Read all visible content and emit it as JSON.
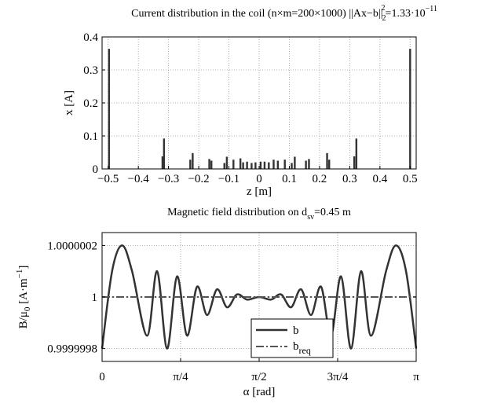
{
  "chart_data": [
    {
      "type": "bar",
      "title": "Current distribution in the coil (n×m=200×1000) ||Ax−b||",
      "title_sub": "2",
      "title_sup": "2",
      "title_tail": "=1.33·10",
      "title_exp": "−11",
      "xlabel": "z [m]",
      "ylabel": "x [A]",
      "xlim": [
        -0.52,
        0.52
      ],
      "ylim": [
        0,
        0.4
      ],
      "xticks": [
        -0.5,
        -0.4,
        -0.3,
        -0.2,
        -0.1,
        0,
        0.1,
        0.2,
        0.3,
        0.4,
        0.5
      ],
      "xtick_labels": [
        "−0.5",
        "−0.4",
        "−0.3",
        "−0.2",
        "−0.1",
        "0",
        "0.1",
        "0.2",
        "0.3",
        "0.4",
        "0.5"
      ],
      "yticks": [
        0,
        0.1,
        0.2,
        0.3,
        0.4
      ],
      "ytick_labels": [
        "0",
        "0.1",
        "0.2",
        "0.3",
        "0.4"
      ],
      "grid": true,
      "color": "#333333",
      "x": [
        -0.497,
        -0.32,
        -0.315,
        -0.228,
        -0.22,
        -0.165,
        -0.158,
        -0.115,
        -0.107,
        -0.085,
        -0.062,
        -0.053,
        -0.04,
        -0.025,
        -0.012,
        0.005,
        0.018,
        0.032,
        0.048,
        0.062,
        0.085,
        0.108,
        0.118,
        0.155,
        0.165,
        0.225,
        0.232,
        0.315,
        0.322,
        0.5
      ],
      "values": [
        0.364,
        0.038,
        0.092,
        0.028,
        0.048,
        0.03,
        0.025,
        0.018,
        0.037,
        0.028,
        0.032,
        0.02,
        0.022,
        0.018,
        0.02,
        0.022,
        0.022,
        0.02,
        0.028,
        0.025,
        0.028,
        0.018,
        0.037,
        0.025,
        0.03,
        0.048,
        0.028,
        0.038,
        0.092,
        0.364
      ]
    },
    {
      "type": "line",
      "title": "Magnetic field distribution on d",
      "title_sub": "sv",
      "title_tail": "=0.45 m",
      "xlabel": "α [rad]",
      "ylabel": "B/μ",
      "ylabel_sub": "0",
      "ylabel_unit": " [A·m",
      "ylabel_sup": "−1",
      "ylabel_end": "]",
      "xlim": [
        0,
        3.14159
      ],
      "ylim": [
        0.99999975,
        1.00000025
      ],
      "xticks": [
        0,
        0.785398,
        1.570796,
        2.356194,
        3.141593
      ],
      "xtick_labels": [
        "0",
        "π/4",
        "π/2",
        "3π/4",
        "π"
      ],
      "yticks": [
        0.9999998,
        1,
        1.0000002
      ],
      "ytick_labels": [
        "0.9999998",
        "1",
        "1.0000002"
      ],
      "grid": true,
      "legend_position": "bottom-center",
      "series": [
        {
          "name": "b",
          "color": "#333333",
          "style": "solid",
          "x": [
            0,
            0.1,
            0.2,
            0.3,
            0.45,
            0.55,
            0.65,
            0.75,
            0.85,
            0.95,
            1.05,
            1.15,
            1.25,
            1.35,
            1.45,
            1.571,
            1.69,
            1.79,
            1.89,
            1.99,
            2.09,
            2.19,
            2.29,
            2.39,
            2.49,
            2.59,
            2.69,
            2.84,
            2.94,
            3.04,
            3.14159
          ],
          "values": [
            0.9999998,
            1.0000001,
            1.0000002,
            1.0000001,
            0.99999985,
            1.0000001,
            0.9999998,
            1.00000008,
            0.99999985,
            1.00000004,
            0.99999993,
            1.00000003,
            0.99999996,
            1.00000001,
            0.99999999,
            1.0,
            0.99999999,
            1.00000001,
            0.99999996,
            1.00000003,
            0.99999993,
            1.00000004,
            0.99999985,
            1.00000008,
            0.9999998,
            1.0000001,
            0.99999985,
            1.0000001,
            1.0000002,
            1.0000001,
            0.9999998
          ]
        },
        {
          "name": "b",
          "name_sub": "req",
          "color": "#555555",
          "style": "dashdot",
          "x": [
            0,
            3.14159
          ],
          "values": [
            1.0,
            1.0
          ]
        }
      ]
    }
  ]
}
